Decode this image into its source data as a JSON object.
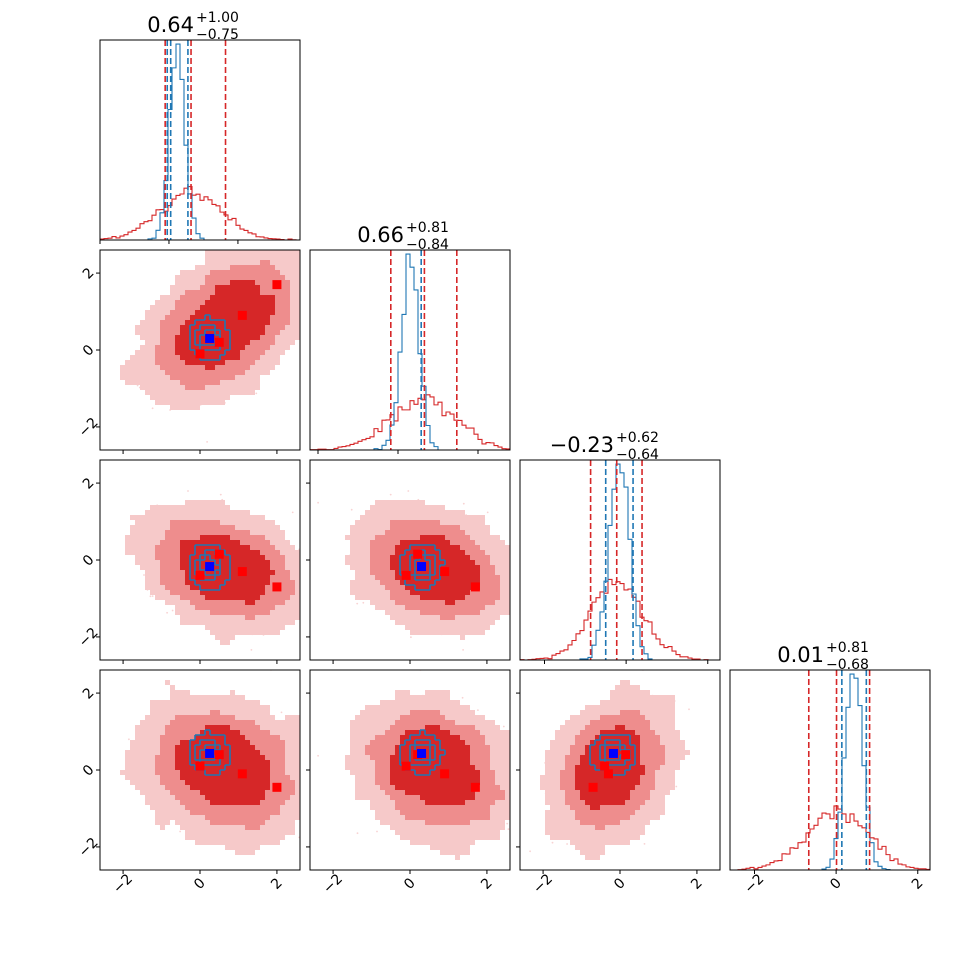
{
  "chart_data": {
    "type": "corner",
    "grid": false,
    "n_params": 4,
    "colors": {
      "wide": "#d62728",
      "narrow": "#1f77b4",
      "truth_wide": "#ff0000",
      "truth_narrow": "#0000ff"
    },
    "axis_range": [
      -2.6,
      2.6
    ],
    "diag_xlim": [
      [
        -2.0,
        3.8
      ],
      [
        -2.2,
        2.8
      ],
      [
        -2.6,
        2.3
      ],
      [
        -2.6,
        2.3
      ]
    ],
    "ticks": [
      -2,
      0,
      2
    ],
    "tick_labels": [
      "−2",
      "0",
      "2"
    ],
    "titles": [
      {
        "value": "0.64",
        "plus": "+1.00",
        "minus": "−0.75"
      },
      {
        "value": "0.66",
        "plus": "+0.81",
        "minus": "−0.84"
      },
      {
        "value": "−0.23",
        "plus": "+0.62",
        "minus": "−0.64"
      },
      {
        "value": "0.01",
        "plus": "+0.81",
        "minus": "−0.68"
      }
    ],
    "quantiles": [
      {
        "wide": [
          -0.11,
          0.64,
          1.64
        ],
        "narrow": [
          -0.05,
          0.55,
          0.05
        ]
      },
      {
        "wide": [
          -0.18,
          0.66,
          1.47
        ],
        "narrow": [
          0.0,
          0.58,
          0.0
        ]
      },
      {
        "wide": [
          -0.87,
          -0.23,
          0.39
        ],
        "narrow": [
          -0.5,
          0.17,
          0.0
        ]
      },
      {
        "wide": [
          -0.67,
          0.01,
          0.82
        ],
        "narrow": [
          0.14,
          0.74,
          0.0
        ]
      }
    ],
    "wide_dist": {
      "means": [
        0.64,
        0.66,
        -0.23,
        0.01
      ],
      "sds": [
        0.9,
        0.83,
        0.63,
        0.75
      ],
      "corr": [
        [
          1,
          0.45,
          -0.3,
          -0.2
        ],
        [
          0.45,
          1,
          -0.25,
          -0.2
        ],
        [
          -0.3,
          -0.25,
          1,
          0.25
        ],
        [
          -0.2,
          -0.2,
          0.25,
          1
        ]
      ]
    },
    "narrow_dist": {
      "means": [
        0.25,
        0.3,
        -0.17,
        0.43
      ],
      "sds": [
        0.22,
        0.22,
        0.25,
        0.22
      ]
    },
    "truth_points": {
      "wide": [
        [
          0.0,
          -0.1,
          -0.4,
          0.1
        ],
        [
          0.5,
          0.2,
          0.15,
          0.4
        ],
        [
          1.1,
          0.9,
          -0.3,
          -0.1
        ],
        [
          2.0,
          1.7,
          -0.7,
          -0.45
        ]
      ],
      "narrow": [
        [
          0.25,
          0.3,
          -0.17,
          0.43
        ]
      ]
    }
  }
}
